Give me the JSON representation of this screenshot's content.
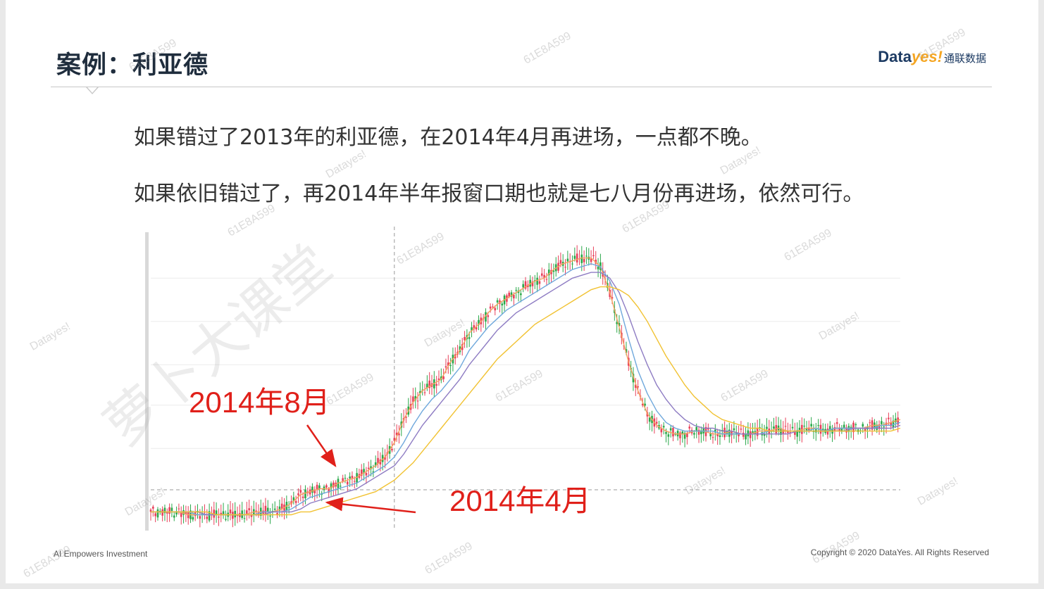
{
  "slide": {
    "title": "案例：利亚德",
    "logo": {
      "brand_a": "Data",
      "brand_b": "yes!",
      "brand_cn": "通联数据"
    },
    "line1": "如果错过了2013年的利亚德，在2014年4月再进场，一点都不晚。",
    "line2": "如果依旧错过了，再2014年半年报窗口期也就是七八月份再进场，依然可行。",
    "footer_left": "AI Empowers Investment",
    "footer_right": "Copyright © 2020 DataYes. All Rights Reserved"
  },
  "watermarks": {
    "code": "61E8A599",
    "brand": "Datayes!",
    "big": "萝卜大课堂"
  },
  "colors": {
    "up": "#e8405a",
    "down": "#2aa84a",
    "ma5": "#f4a261",
    "ma10": "#6fa8dc",
    "ma20": "#8e7cc3",
    "ma60": "#f1c232",
    "annotation": "#e0201a"
  },
  "chart_data": {
    "type": "line",
    "title": "",
    "xlabel": "",
    "ylabel": "",
    "x": [
      0,
      1,
      2,
      3,
      4,
      5,
      6,
      7,
      8,
      9,
      10,
      11,
      12,
      13,
      14,
      15,
      16,
      17,
      18,
      19,
      20,
      21,
      22,
      23,
      24,
      25,
      26,
      27,
      28,
      29,
      30,
      31,
      32,
      33,
      34,
      35,
      36,
      37,
      38,
      39,
      40,
      41,
      42,
      43,
      44,
      45,
      46,
      47,
      48,
      49,
      50,
      51,
      52,
      53,
      54,
      55,
      56,
      57,
      58,
      59,
      60,
      61,
      62,
      63,
      64,
      65,
      66,
      67,
      68,
      69,
      70,
      71,
      72,
      73,
      74,
      75,
      76,
      77,
      78,
      79,
      80
    ],
    "series": [
      {
        "values": [
          6,
          6,
          6,
          6,
          5,
          5,
          5,
          5,
          5,
          5,
          5,
          6,
          6,
          6,
          7,
          9,
          12,
          13,
          14,
          14,
          16,
          17,
          18,
          20,
          22,
          25,
          30,
          38,
          44,
          48,
          50,
          52,
          58,
          62,
          68,
          71,
          75,
          78,
          80,
          82,
          84,
          86,
          87,
          90,
          92,
          93,
          94,
          94,
          91,
          82,
          70,
          58,
          48,
          40,
          36,
          34,
          33,
          33,
          34,
          34,
          33,
          33,
          34,
          33,
          33,
          34,
          34,
          35,
          34,
          34,
          35,
          35,
          34,
          35,
          35,
          35,
          35,
          36,
          36,
          37,
          38
        ]
      },
      {
        "values": [
          6,
          6,
          6,
          6,
          6,
          5,
          5,
          5,
          5,
          5,
          5,
          5,
          6,
          6,
          6,
          7,
          9,
          11,
          12,
          13,
          14,
          15,
          16,
          18,
          20,
          22,
          25,
          30,
          36,
          41,
          45,
          48,
          52,
          56,
          62,
          66,
          70,
          73,
          76,
          78,
          80,
          82,
          84,
          86,
          88,
          90,
          91,
          92,
          91,
          86,
          78,
          66,
          55,
          47,
          41,
          37,
          35,
          34,
          34,
          34,
          34,
          33,
          33,
          33,
          33,
          33,
          34,
          34,
          34,
          34,
          34,
          35,
          34,
          35,
          35,
          35,
          35,
          35,
          36,
          36,
          37
        ]
      },
      {
        "values": [
          6,
          6,
          6,
          6,
          6,
          6,
          5,
          5,
          5,
          5,
          5,
          5,
          5,
          6,
          6,
          6,
          7,
          9,
          10,
          11,
          12,
          13,
          14,
          16,
          18,
          20,
          22,
          26,
          31,
          36,
          40,
          44,
          48,
          52,
          57,
          61,
          65,
          69,
          72,
          75,
          77,
          79,
          81,
          83,
          85,
          87,
          88,
          89,
          89,
          87,
          82,
          74,
          65,
          57,
          50,
          45,
          41,
          38,
          36,
          35,
          35,
          34,
          34,
          33,
          33,
          33,
          33,
          33,
          33,
          34,
          34,
          34,
          34,
          34,
          34,
          35,
          35,
          35,
          35,
          35,
          36
        ]
      },
      {
        "values": [
          6,
          6,
          6,
          6,
          6,
          6,
          6,
          5,
          5,
          5,
          5,
          5,
          5,
          5,
          5,
          5,
          6,
          6,
          7,
          8,
          9,
          10,
          11,
          12,
          13,
          15,
          17,
          20,
          23,
          27,
          31,
          35,
          39,
          43,
          47,
          51,
          55,
          59,
          62,
          65,
          68,
          71,
          73,
          75,
          77,
          79,
          81,
          83,
          84,
          84,
          83,
          81,
          77,
          72,
          66,
          60,
          55,
          50,
          46,
          43,
          40,
          38,
          37,
          36,
          35,
          35,
          34,
          34,
          34,
          34,
          34,
          34,
          34,
          34,
          34,
          34,
          34,
          34,
          34,
          34,
          35
        ]
      }
    ],
    "ylim": [
      0,
      100
    ],
    "grid": true,
    "annotations": [
      {
        "text": "2014年8月",
        "x": 26
      },
      {
        "text": "2014年4月",
        "x": 21
      }
    ]
  }
}
